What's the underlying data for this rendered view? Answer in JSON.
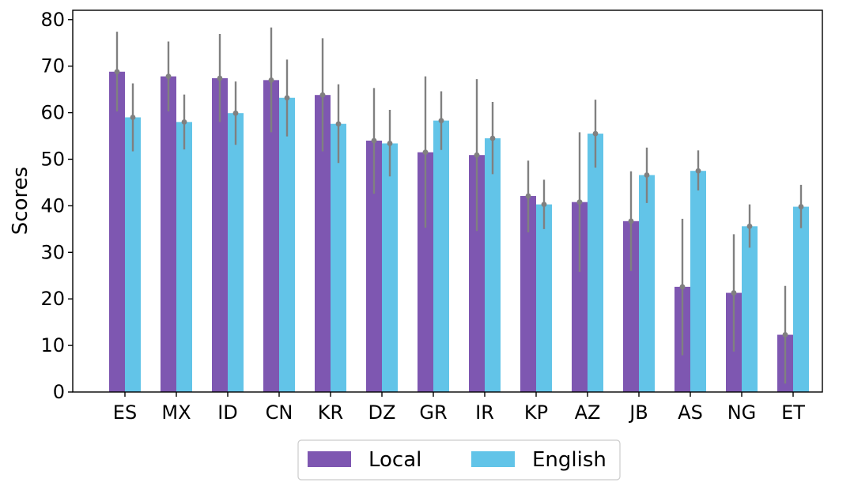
{
  "colors": {
    "local": "#7e57b1",
    "english": "#62c4e8",
    "error_bar": "#808080"
  },
  "chart_data": {
    "type": "bar",
    "title": "",
    "xlabel": "",
    "ylabel": "Scores",
    "ylim": [
      0,
      82
    ],
    "yticks": [
      0,
      10,
      20,
      30,
      40,
      50,
      60,
      70,
      80
    ],
    "grid": false,
    "legend_position": "bottom-center",
    "categories": [
      "ES",
      "MX",
      "ID",
      "CN",
      "KR",
      "DZ",
      "GR",
      "IR",
      "KP",
      "AZ",
      "JB",
      "AS",
      "NG",
      "ET"
    ],
    "series": [
      {
        "name": "Local",
        "values": [
          68.8,
          67.8,
          67.4,
          67.0,
          63.8,
          54.0,
          51.5,
          50.9,
          42.1,
          40.8,
          36.7,
          22.6,
          21.3,
          12.3
        ],
        "err_low": [
          60.3,
          60.3,
          58.0,
          55.8,
          51.7,
          42.6,
          35.3,
          34.6,
          34.3,
          25.8,
          26.0,
          7.9,
          8.7,
          1.8
        ],
        "err_high": [
          77.4,
          75.3,
          76.9,
          78.3,
          76.0,
          65.3,
          67.8,
          67.2,
          49.7,
          55.8,
          47.4,
          37.2,
          33.9,
          22.8
        ]
      },
      {
        "name": "English",
        "values": [
          59.0,
          58.0,
          59.9,
          63.2,
          57.6,
          53.4,
          58.3,
          54.5,
          40.3,
          55.5,
          46.6,
          47.5,
          35.6,
          39.8
        ],
        "err_low": [
          51.7,
          52.1,
          53.1,
          54.9,
          49.2,
          46.3,
          52.0,
          46.8,
          35.0,
          48.2,
          40.6,
          43.3,
          31.0,
          35.2
        ],
        "err_high": [
          66.3,
          63.9,
          66.7,
          71.4,
          66.1,
          60.6,
          64.6,
          62.3,
          45.6,
          62.8,
          52.5,
          51.9,
          40.3,
          44.5
        ]
      }
    ]
  }
}
